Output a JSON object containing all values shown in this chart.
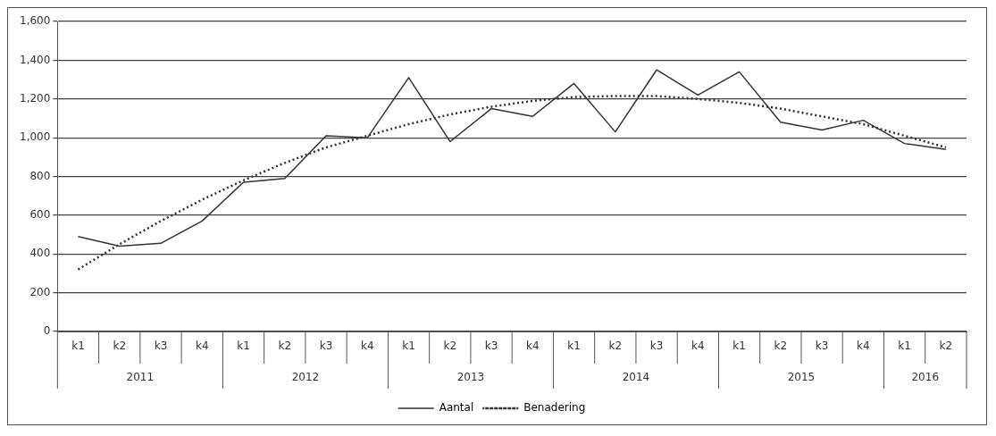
{
  "chart_data": {
    "type": "line",
    "categories": [
      "k1",
      "k2",
      "k3",
      "k4",
      "k1",
      "k2",
      "k3",
      "k4",
      "k1",
      "k2",
      "k3",
      "k4",
      "k1",
      "k2",
      "k3",
      "k4",
      "k1",
      "k2",
      "k3",
      "k4",
      "k1",
      "k2"
    ],
    "annotations": [
      "2011",
      "2012",
      "2013",
      "2014",
      "2015",
      "2016"
    ],
    "series": [
      {
        "name": "Aantal",
        "color": "#333333",
        "line_style": "solid",
        "values": [
          490,
          440,
          455,
          570,
          770,
          790,
          1010,
          1000,
          1310,
          980,
          1150,
          1110,
          1280,
          1030,
          1350,
          1220,
          1340,
          1080,
          1040,
          1090,
          970,
          940
        ]
      },
      {
        "name": "Benadering",
        "color": "#333333",
        "line_style": "dotted",
        "values": [
          320,
          450,
          570,
          680,
          780,
          870,
          950,
          1010,
          1070,
          1120,
          1160,
          1190,
          1210,
          1215,
          1215,
          1200,
          1180,
          1150,
          1110,
          1070,
          1010,
          950
        ]
      }
    ],
    "ylim": [
      0,
      1600
    ],
    "yticks": [
      0,
      200,
      400,
      600,
      800,
      {
        "value": 1000,
        "label": "1,000"
      },
      {
        "value": 1200,
        "label": "1,200"
      },
      {
        "value": 1400,
        "label": "1,400"
      },
      {
        "value": 1600,
        "label": "1,600"
      }
    ],
    "grid": "y",
    "legend": "bottom",
    "marker": "none"
  }
}
